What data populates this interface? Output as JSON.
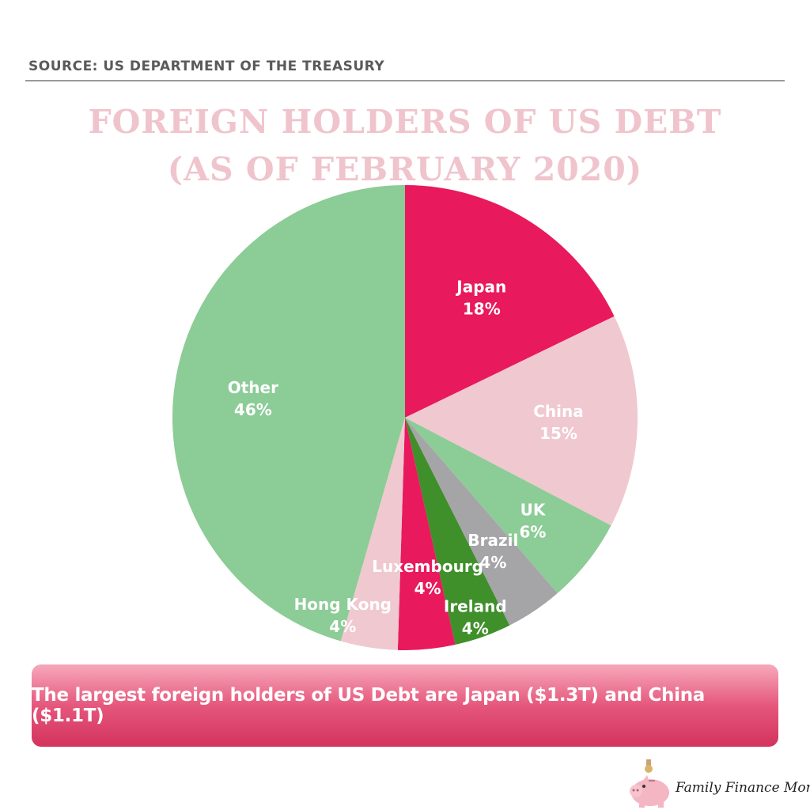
{
  "source": "SOURCE: US DEPARTMENT OF THE TREASURY",
  "chart_data": {
    "type": "pie",
    "title": "FOREIGN HOLDERS OF US DEBT",
    "subtitle": "(AS OF FEBRUARY 2020)",
    "slices": [
      {
        "label": "Japan",
        "value": 18,
        "display": "18%",
        "color": "#e8195d"
      },
      {
        "label": "China",
        "value": 15,
        "display": "15%",
        "color": "#f0c8d0"
      },
      {
        "label": "UK",
        "value": 6,
        "display": "6%",
        "color": "#8ccc96"
      },
      {
        "label": "Brazil",
        "value": 4,
        "display": "4%",
        "color": "#a5a5a8"
      },
      {
        "label": "Ireland",
        "value": 4,
        "display": "4%",
        "color": "#3f8f2a"
      },
      {
        "label": "Luxembourg",
        "value": 4,
        "display": "4%",
        "color": "#e8195d"
      },
      {
        "label": "Hong Kong",
        "value": 4,
        "display": "4%",
        "color": "#f0c8d0"
      },
      {
        "label": "Other",
        "value": 46,
        "display": "46%",
        "color": "#8ccc96"
      }
    ],
    "start": "12 o'clock",
    "direction": "clockwise",
    "legend": "none"
  },
  "banner": {
    "text": "The largest foreign holders of US Debt are Japan ($1.3T) and China ($1.1T)"
  },
  "brand": {
    "name": "Family Finance Mom",
    "icon": "piggy-bank-icon"
  }
}
